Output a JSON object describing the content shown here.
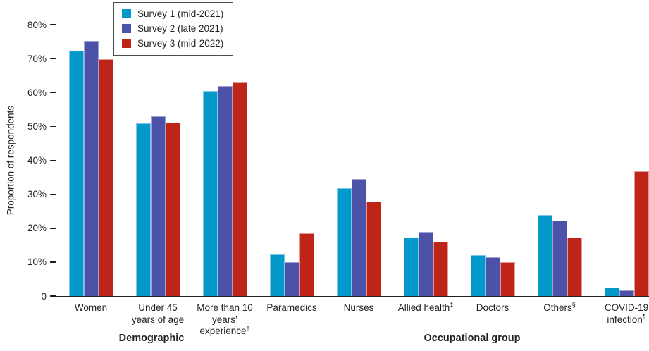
{
  "chart_data": {
    "type": "bar",
    "title": "",
    "ylabel": "Proportion of respondents",
    "xlabel": "",
    "ylim": [
      0,
      80
    ],
    "grid": false,
    "legend_position": "top-left",
    "yticks": [
      {
        "value": 0,
        "label": "0"
      },
      {
        "value": 10,
        "label": "10%"
      },
      {
        "value": 20,
        "label": "20%"
      },
      {
        "value": 30,
        "label": "30%"
      },
      {
        "value": 40,
        "label": "40%"
      },
      {
        "value": 50,
        "label": "50%"
      },
      {
        "value": 60,
        "label": "60%"
      },
      {
        "value": 70,
        "label": "70%"
      },
      {
        "value": 80,
        "label": "80%"
      }
    ],
    "categories": [
      {
        "lines": [
          "Women"
        ],
        "sup": ""
      },
      {
        "lines": [
          "Under 45",
          "years of age"
        ],
        "sup": ""
      },
      {
        "lines": [
          "More than 10",
          "years’ experience"
        ],
        "sup": "†"
      },
      {
        "lines": [
          "Paramedics"
        ],
        "sup": ""
      },
      {
        "lines": [
          "Nurses"
        ],
        "sup": ""
      },
      {
        "lines": [
          "Allied health"
        ],
        "sup": "‡"
      },
      {
        "lines": [
          "Doctors"
        ],
        "sup": ""
      },
      {
        "lines": [
          "Others"
        ],
        "sup": "§"
      },
      {
        "lines": [
          "COVID-19",
          "infection"
        ],
        "sup": "¶"
      }
    ],
    "series": [
      {
        "name": "Survey 1 (mid-2021)",
        "color": "#0399cb",
        "edge": "#7ec8e3",
        "values": [
          72.3,
          51.0,
          60.5,
          12.3,
          31.8,
          17.2,
          12.0,
          23.8,
          2.4
        ]
      },
      {
        "name": "Survey 2 (late 2021)",
        "color": "#4b52a8",
        "edge": "#9fa3d1",
        "values": [
          75.2,
          53.0,
          62.0,
          9.9,
          34.4,
          18.9,
          11.4,
          22.3,
          1.6
        ]
      },
      {
        "name": "Survey 3 (mid-2022)",
        "color": "#bf2418",
        "edge": "#e39a94",
        "values": [
          69.8,
          51.2,
          62.9,
          18.4,
          27.8,
          16.1,
          9.9,
          17.2,
          36.7
        ]
      }
    ],
    "group_sections": [
      {
        "label": "Demographic",
        "center": 215
      },
      {
        "label": "Occupational group",
        "center": 670
      }
    ],
    "text_color": "#231f20",
    "axis_color": "#231f20"
  }
}
